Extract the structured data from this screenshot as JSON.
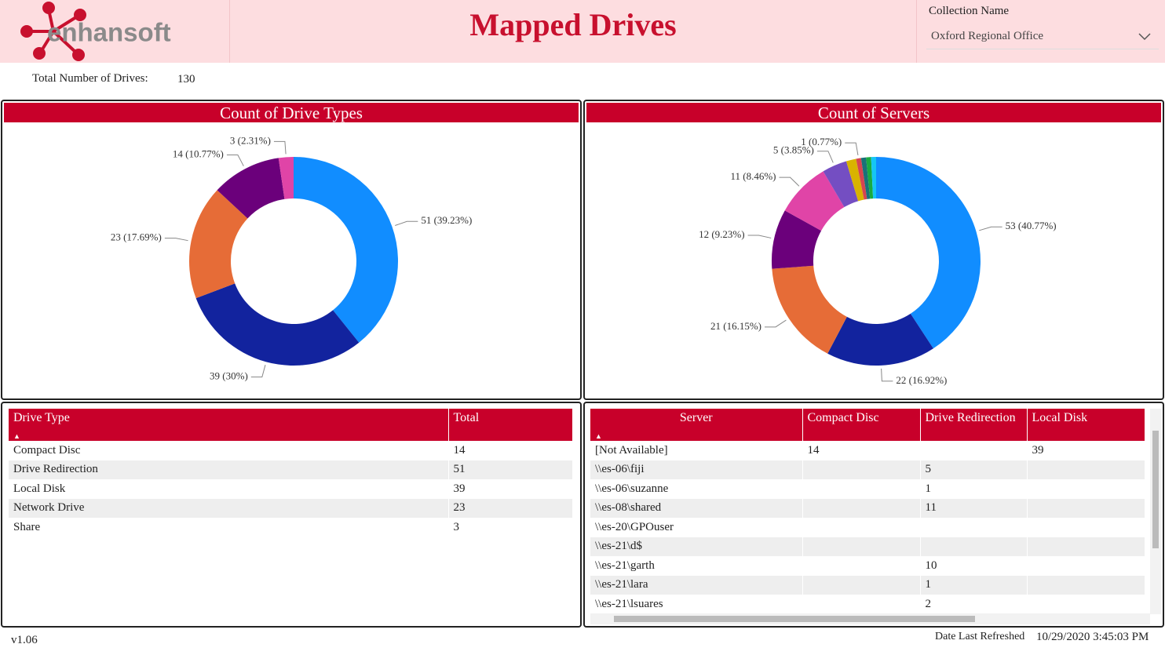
{
  "header": {
    "logo": "enhansoft",
    "title": "Mapped Drives",
    "filter_label": "Collection Name",
    "filter_value": "Oxford Regional Office"
  },
  "summary": {
    "label": "Total Number of Drives:",
    "value": 130
  },
  "chart_data": [
    {
      "type": "pie",
      "donut": true,
      "title": "Count of Drive Types",
      "values": [
        51,
        39,
        23,
        14,
        3
      ],
      "value_labels": [
        "51 (39.23%)",
        "39 (30%)",
        "23 (17.69%)",
        "14 (10.77%)",
        "3 (2.31%)"
      ],
      "colors": [
        "#118DFF",
        "#12239E",
        "#E66C37",
        "#6B007B",
        "#E044A7"
      ]
    },
    {
      "type": "pie",
      "donut": true,
      "title": "Count of Servers",
      "values": [
        53,
        22,
        21,
        12,
        11,
        5,
        2,
        1,
        1,
        1,
        1
      ],
      "value_labels": [
        "53 (40.77%)",
        "22 (16.92%)",
        "21 (16.15%)",
        "12 (9.23%)",
        "11 (8.46%)",
        "5 (3.85%)",
        null,
        "1 (0.77%)",
        null,
        null,
        null
      ],
      "colors": [
        "#118DFF",
        "#12239E",
        "#E66C37",
        "#6B007B",
        "#E044A7",
        "#744EC2",
        "#D9B300",
        "#D64550",
        "#197278",
        "#1AAB40",
        "#15C6F4"
      ]
    }
  ],
  "tables": [
    {
      "columns": [
        "Drive Type",
        "Total"
      ],
      "rows": [
        [
          "Compact Disc",
          14
        ],
        [
          "Drive Redirection",
          51
        ],
        [
          "Local Disk",
          39
        ],
        [
          "Network Drive",
          23
        ],
        [
          "Share",
          3
        ]
      ]
    },
    {
      "columns": [
        "Server",
        "Compact Disc",
        "Drive Redirection",
        "Local Disk"
      ],
      "rows": [
        [
          "[Not Available]",
          14,
          null,
          39
        ],
        [
          "\\\\es-06\\fiji",
          null,
          5,
          null
        ],
        [
          "\\\\es-06\\suzanne",
          null,
          1,
          null
        ],
        [
          "\\\\es-08\\shared",
          null,
          11,
          null
        ],
        [
          "\\\\es-20\\GPOuser",
          null,
          null,
          null
        ],
        [
          "\\\\es-21\\d$",
          null,
          null,
          null
        ],
        [
          "\\\\es-21\\garth",
          null,
          10,
          null
        ],
        [
          "\\\\es-21\\lara",
          null,
          1,
          null
        ],
        [
          "\\\\es-21\\lsuares",
          null,
          2,
          null
        ]
      ]
    }
  ],
  "footer": {
    "version": "v1.06",
    "refreshed_label": "Date Last Refreshed",
    "refreshed_value": "10/29/2020 3:45:03 PM"
  }
}
